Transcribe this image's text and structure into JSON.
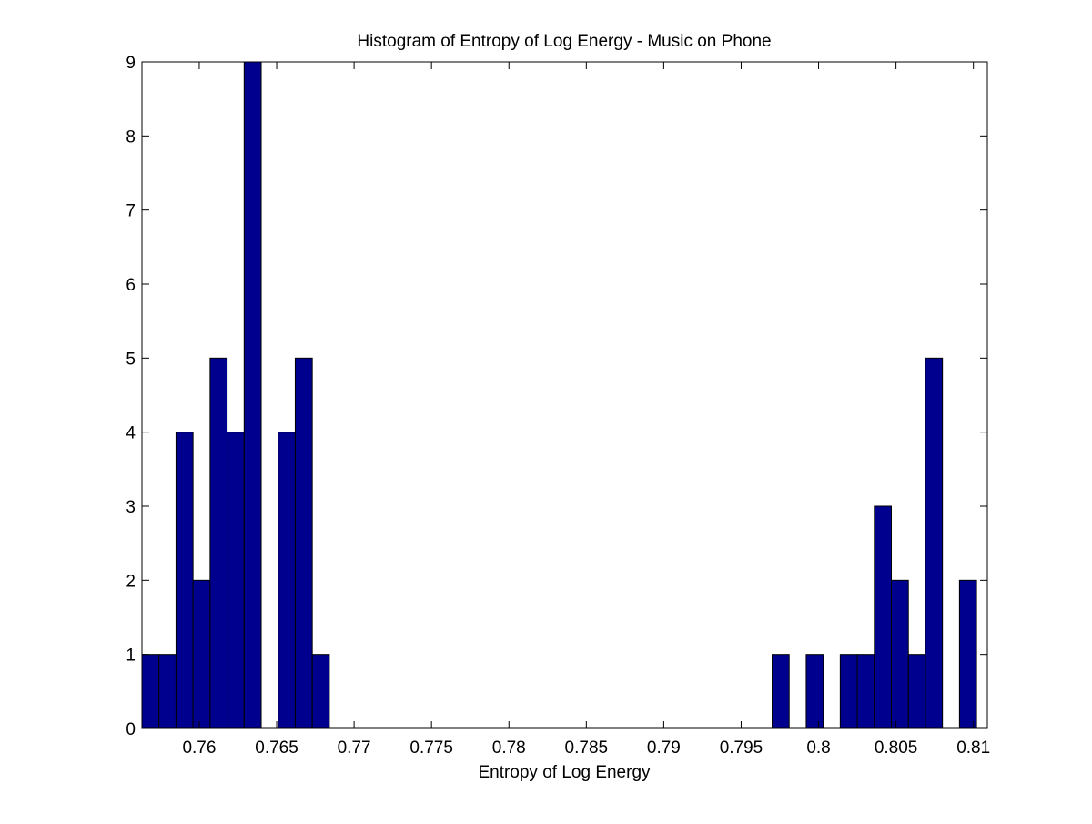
{
  "chart_data": {
    "type": "bar",
    "title": "Histogram of Entropy of Log Energy - Music on Phone",
    "xlabel": "Entropy of Log Energy",
    "ylabel": "",
    "xlim": [
      0.7563,
      0.8109
    ],
    "ylim": [
      0,
      9
    ],
    "x_ticks": [
      0.76,
      0.765,
      0.77,
      0.775,
      0.78,
      0.785,
      0.79,
      0.795,
      0.8,
      0.805,
      0.81
    ],
    "x_tick_labels": [
      "0.76",
      "0.765",
      "0.77",
      "0.775",
      "0.78",
      "0.785",
      "0.79",
      "0.795",
      "0.8",
      "0.805",
      "0.81"
    ],
    "y_ticks": [
      0,
      1,
      2,
      3,
      4,
      5,
      6,
      7,
      8,
      9
    ],
    "y_tick_labels": [
      "0",
      "1",
      "2",
      "3",
      "4",
      "5",
      "6",
      "7",
      "8",
      "9"
    ],
    "bin_edges": [
      0.7563,
      0.7574,
      0.7585,
      0.7596,
      0.7607,
      0.7618,
      0.7629,
      0.764,
      0.7651,
      0.7662,
      0.7673,
      0.7684,
      0.7695,
      0.7706,
      0.7717,
      0.7728,
      0.7739,
      0.775,
      0.7761,
      0.7772,
      0.7783,
      0.7794,
      0.7805,
      0.7816,
      0.7827,
      0.7838,
      0.7849,
      0.786,
      0.7871,
      0.7882,
      0.7893,
      0.7904,
      0.7915,
      0.7926,
      0.7937,
      0.7948,
      0.7959,
      0.797,
      0.7981,
      0.7992,
      0.8003,
      0.8014,
      0.8025,
      0.8036,
      0.8047,
      0.8058,
      0.8069,
      0.808,
      0.8091,
      0.8102,
      0.8113
    ],
    "counts": [
      1,
      1,
      4,
      2,
      5,
      4,
      9,
      0,
      4,
      5,
      1,
      0,
      0,
      0,
      0,
      0,
      0,
      0,
      0,
      0,
      0,
      0,
      0,
      0,
      0,
      0,
      0,
      0,
      0,
      0,
      0,
      0,
      0,
      0,
      0,
      0,
      0,
      1,
      0,
      1,
      0,
      1,
      1,
      3,
      2,
      1,
      5,
      0,
      2,
      0
    ],
    "colors": {
      "bar_fill": "#00008f",
      "bar_edge": "#000000",
      "axis": "#000000",
      "background": "#ffffff"
    },
    "grid": false,
    "legend": "none"
  }
}
